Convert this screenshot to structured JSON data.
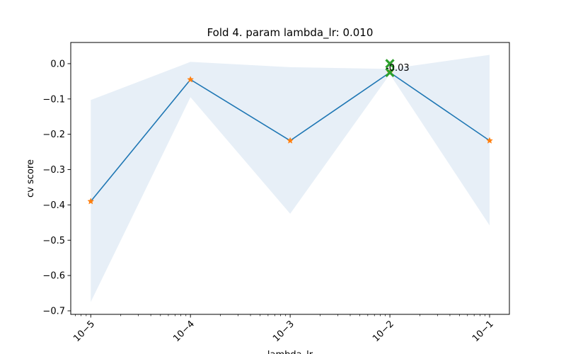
{
  "chart_data": {
    "type": "line",
    "title": "Fold 4. param lambda_lr: 0.010",
    "xlabel": "lambda_lr",
    "ylabel": "cv score",
    "xscale": "log",
    "xlim": [
      6.3e-06,
      0.158
    ],
    "ylim": [
      -0.71,
      0.06
    ],
    "x_tick_labels": [
      "10−5",
      "10−4",
      "10−3",
      "10−2",
      "10−1"
    ],
    "x_tick_values": [
      1e-05,
      0.0001,
      0.001,
      0.01,
      0.1
    ],
    "y_ticks": [
      0.0,
      -0.1,
      -0.2,
      -0.3,
      -0.4,
      -0.5,
      -0.6,
      -0.7
    ],
    "y_tick_labels": [
      "0.0",
      "−0.1",
      "−0.2",
      "−0.3",
      "−0.4",
      "−0.5",
      "−0.6",
      "−0.7"
    ],
    "grid": false,
    "x": [
      1e-05,
      0.0001,
      0.001,
      0.01,
      0.1
    ],
    "series": [
      {
        "name": "",
        "values": [
          -0.39,
          -0.045,
          -0.218,
          -0.025,
          -0.218
        ],
        "lower": [
          -0.675,
          -0.095,
          -0.425,
          -0.03,
          -0.458
        ],
        "upper": [
          -0.103,
          0.005,
          -0.01,
          -0.015,
          0.025
        ],
        "color": "#1f77b4",
        "band_color": "#e7eff7",
        "marker_color": "#ff7f0e"
      }
    ],
    "best": {
      "x": 0.01,
      "markers_y": [
        0.0,
        -0.025
      ],
      "label": "-0.03",
      "color": "#2ca02c"
    }
  }
}
